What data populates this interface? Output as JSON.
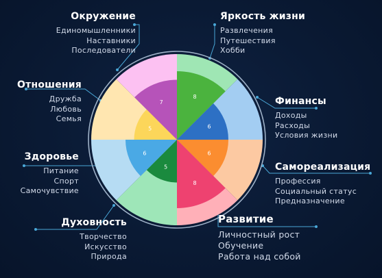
{
  "wheel": {
    "sectors": [
      {
        "id": "brightness",
        "score": 8,
        "outer_color": "#9fe6b4",
        "inner_color": "#4bb33e"
      },
      {
        "id": "finance",
        "score": 6,
        "outer_color": "#a3cdf2",
        "inner_color": "#2d70c4"
      },
      {
        "id": "self_realization",
        "score": 6,
        "outer_color": "#fcc9a2",
        "inner_color": "#fb8d30"
      },
      {
        "id": "development",
        "score": 8,
        "outer_color": "#ffb0b8",
        "inner_color": "#ee4270"
      },
      {
        "id": "spirituality",
        "score": 5,
        "outer_color": "#9ee6b8",
        "inner_color": "#1a8a3e"
      },
      {
        "id": "health",
        "score": 6,
        "outer_color": "#b6dcf3",
        "inner_color": "#4aa9e5"
      },
      {
        "id": "relations",
        "score": 5,
        "outer_color": "#ffe6b0",
        "inner_color": "#fcd65a"
      },
      {
        "id": "environment",
        "score": 7,
        "outer_color": "#fcc1f2",
        "inner_color": "#b653b9"
      }
    ],
    "max_score": 10,
    "ring_color": "#9fb2c8",
    "connector_color": "#4aa8d8"
  },
  "labels": {
    "brightness": {
      "title": "Яркость жизни",
      "items": [
        "Развлечения",
        "Путешествия",
        "Хобби"
      ]
    },
    "finance": {
      "title": "Финансы",
      "items": [
        "Доходы",
        "Расходы",
        "Условия жизни"
      ]
    },
    "self_realization": {
      "title": "Самореализация",
      "items": [
        "Профессия",
        "Социальный статус",
        "Предназначение"
      ]
    },
    "development": {
      "title": "Развитие",
      "items": [
        "Личностный рост",
        "Обучение",
        "Работа над собой"
      ]
    },
    "spirituality": {
      "title": "Духовность",
      "items": [
        "Творчество",
        "Искусство",
        "Природа"
      ]
    },
    "health": {
      "title": "Здоровье",
      "items": [
        "Питание",
        "Спорт",
        "Самочувствие"
      ]
    },
    "relations": {
      "title": "Отношения",
      "items": [
        "Дружба",
        "Любовь",
        "Семья"
      ]
    },
    "environment": {
      "title": "Окружение",
      "items": [
        "Единомышленники",
        "Наставники",
        "Последователи"
      ]
    }
  }
}
